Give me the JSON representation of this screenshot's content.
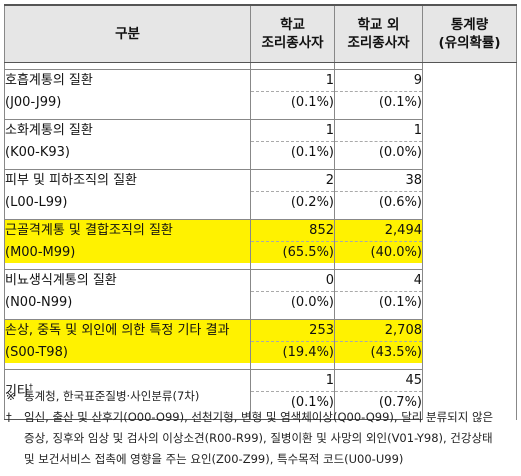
{
  "header": {
    "col1": "구분",
    "col2_line1": "학교",
    "col2_line2": "조리종사자",
    "col3_line1": "학교 외",
    "col3_line2": "조리종사자",
    "col4_line1": "통계량",
    "col4_line2": "(유의확률)"
  },
  "rows": [
    {
      "name": "호흡계통의 질환",
      "code": "(J00-J99)",
      "school_n": "1",
      "school_pct": "(0.1%)",
      "other_n": "9",
      "other_pct": "(0.1%)",
      "highlight": false
    },
    {
      "name": "소화계통의 질환",
      "code": "(K00-K93)",
      "school_n": "1",
      "school_pct": "(0.1%)",
      "other_n": "1",
      "other_pct": "(0.0%)",
      "highlight": false
    },
    {
      "name": "피부 및 피하조직의 질환",
      "code": "(L00-L99)",
      "school_n": "2",
      "school_pct": "(0.2%)",
      "other_n": "38",
      "other_pct": "(0.6%)",
      "highlight": false
    },
    {
      "name": "근골격계통 및 결합조직의 질환",
      "code": "(M00-M99)",
      "school_n": "852",
      "school_pct": "(65.5%)",
      "other_n": "2,494",
      "other_pct": "(40.0%)",
      "highlight": true
    },
    {
      "name": "비뇨생식계통의 질환",
      "code": "(N00-N99)",
      "school_n": "0",
      "school_pct": "(0.0%)",
      "other_n": "4",
      "other_pct": "(0.1%)",
      "highlight": false
    },
    {
      "name": "손상, 중독 및 외인에 의한 특정 기타 결과",
      "code": "(S00-T98)",
      "school_n": "253",
      "school_pct": "(19.4%)",
      "other_n": "2,708",
      "other_pct": "(43.5%)",
      "highlight": true
    },
    {
      "name": "기타",
      "name_sup": "†",
      "code": "",
      "school_n": "1",
      "school_pct": "(0.1%)",
      "other_n": "45",
      "other_pct": "(0.7%)",
      "highlight": false
    }
  ],
  "notes": {
    "note1_mark": "※",
    "note1": "통계청, 한국표준질병·사인분류(7차)",
    "note2_mark": "†",
    "note2_line1": "임신, 출산 및 산후기(O00-O99), 선천기형, 변형 및 염색체이상(Q00-Q99), 달리 분류되지 않은",
    "note2_line2": "증상, 징후와 임상 및 검사의 이상소견(R00-R99), 질병이환 및 사망의 외인(V01-Y98), 건강상태",
    "note2_line3": "및 보건서비스 접촉에 영향을 주는 요인(Z00-Z99), 특수목적 코드(U00-U99)"
  },
  "colors": {
    "highlight": "#fff200",
    "header_bg": "#e6e6e6"
  }
}
